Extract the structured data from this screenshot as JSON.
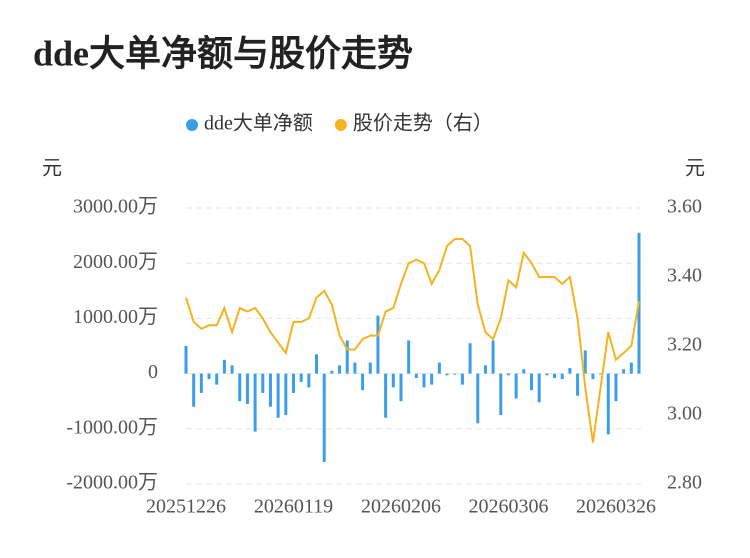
{
  "chart_data": {
    "type": "bar_line",
    "title": "dde大单净额与股价走势",
    "y_label": "元",
    "y2_label": "元",
    "categories": [
      "20251226",
      null,
      null,
      null,
      null,
      null,
      null,
      null,
      null,
      null,
      null,
      null,
      null,
      null,
      "20260119",
      null,
      null,
      null,
      null,
      null,
      null,
      null,
      null,
      null,
      null,
      null,
      null,
      null,
      "20260206",
      null,
      null,
      null,
      null,
      null,
      null,
      null,
      null,
      null,
      null,
      null,
      null,
      null,
      "20260306",
      null,
      null,
      null,
      null,
      null,
      null,
      null,
      null,
      null,
      null,
      null,
      null,
      null,
      "20260326",
      null,
      null,
      null
    ],
    "series": [
      {
        "name": "dde大单净额",
        "type": "bar",
        "color": "#3a9ee8",
        "axis": "y",
        "values": [
          500,
          -600,
          -350,
          -100,
          -200,
          250,
          150,
          -500,
          -550,
          -1050,
          -350,
          -600,
          -800,
          -750,
          -350,
          -150,
          -250,
          350,
          -1600,
          50,
          150,
          600,
          200,
          -300,
          200,
          1050,
          -800,
          -250,
          -500,
          600,
          -80,
          -250,
          -200,
          200,
          -30,
          -20,
          -200,
          550,
          -900,
          150,
          600,
          -750,
          -30,
          -450,
          80,
          -300,
          -520,
          -30,
          -80,
          -100,
          100,
          -400,
          420,
          -100,
          0,
          -1100,
          -500,
          80,
          200,
          2550
        ]
      },
      {
        "name": "股价走势（右）",
        "type": "line",
        "color": "#f5b320",
        "axis": "y2",
        "values": [
          3.34,
          3.27,
          3.25,
          3.26,
          3.26,
          3.31,
          3.24,
          3.31,
          3.3,
          3.31,
          3.28,
          3.24,
          3.21,
          3.18,
          3.27,
          3.27,
          3.28,
          3.34,
          3.36,
          3.32,
          3.23,
          3.19,
          3.19,
          3.22,
          3.23,
          3.23,
          3.3,
          3.31,
          3.38,
          3.44,
          3.45,
          3.44,
          3.38,
          3.42,
          3.49,
          3.51,
          3.51,
          3.49,
          3.32,
          3.24,
          3.22,
          3.28,
          3.39,
          3.37,
          3.47,
          3.44,
          3.4,
          3.4,
          3.4,
          3.38,
          3.4,
          3.28,
          3.08,
          2.92,
          3.08,
          3.24,
          3.16,
          3.18,
          3.2,
          3.33
        ]
      }
    ],
    "ylim": [
      -2000,
      3000
    ],
    "yticks": [
      {
        "value": -2000,
        "label": "-2000.00万"
      },
      {
        "value": -1000,
        "label": "-1000.00万"
      },
      0,
      {
        "value": 1000,
        "label": "1000.00万"
      },
      {
        "value": 2000,
        "label": "2000.00万"
      },
      {
        "value": 3000,
        "label": "3000.00万"
      }
    ],
    "y2lim": [
      2.8,
      3.6
    ],
    "y2ticks": [
      {
        "value": 2.8,
        "label": "2.80"
      },
      {
        "value": 3.0,
        "label": "3.00"
      },
      {
        "value": 3.2,
        "label": "3.20"
      },
      {
        "value": 3.4,
        "label": "3.40"
      },
      {
        "value": 3.6,
        "label": "3.60"
      }
    ],
    "grid": true,
    "legend": "top"
  }
}
